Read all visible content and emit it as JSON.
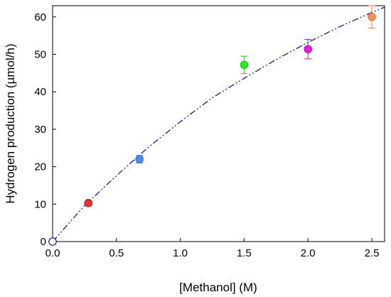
{
  "chart_data": {
    "type": "scatter",
    "title": "",
    "xlabel": "[Methanol] (M)",
    "ylabel": "Hydrogen production (µmol/h)",
    "xlim": [
      0,
      2.6
    ],
    "ylim": [
      0,
      63
    ],
    "x_ticks": [
      "0.0",
      "0.5",
      "1.0",
      "1.5",
      "2.0",
      "2.5"
    ],
    "y_ticks": [
      "0",
      "10",
      "20",
      "30",
      "40",
      "50",
      "60"
    ],
    "grid": false,
    "legend": "none",
    "series": [
      {
        "points": [
          {
            "x": 0.0,
            "y": 0.0,
            "err": 0,
            "color": "#ffffff",
            "edge": "#1a1a8c"
          },
          {
            "x": 0.28,
            "y": 10.3,
            "err": 0.5,
            "color": "#e83030",
            "edge": "#c01818"
          },
          {
            "x": 0.68,
            "y": 22.0,
            "err": 1.0,
            "color": "#4a8ef0",
            "edge": "#3070d8"
          },
          {
            "x": 1.5,
            "y": 47.2,
            "err": 2.3,
            "color": "#22ee22",
            "edge": "#18cc18"
          },
          {
            "x": 2.0,
            "y": 51.4,
            "err": 2.6,
            "color": "#e020e0",
            "edge": "#c010c0"
          },
          {
            "x": 2.5,
            "y": 60.0,
            "err": 3.0,
            "color": "#f59050",
            "edge": "#e07a3a"
          }
        ]
      }
    ],
    "fit_curve": {
      "style": "dash-dot-dot",
      "color": "#1a1a8c",
      "x": [
        0.0,
        0.25,
        0.5,
        0.75,
        1.0,
        1.25,
        1.5,
        1.75,
        2.0,
        2.25,
        2.5,
        2.6
      ],
      "y": [
        0.0,
        9.6,
        17.6,
        25.2,
        32.0,
        38.4,
        43.6,
        48.6,
        53.2,
        57.4,
        61.2,
        62.6
      ]
    }
  }
}
